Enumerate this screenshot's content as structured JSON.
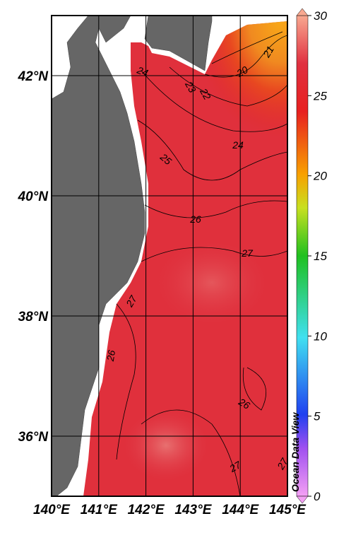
{
  "map": {
    "xlim": [
      140,
      145
    ],
    "ylim": [
      35,
      43
    ],
    "xticks": [
      {
        "value": 140,
        "label": "140°E"
      },
      {
        "value": 141,
        "label": "141°E"
      },
      {
        "value": 142,
        "label": "142°E"
      },
      {
        "value": 143,
        "label": "143°E"
      },
      {
        "value": 144,
        "label": "144°E"
      },
      {
        "value": 145,
        "label": "145°E"
      }
    ],
    "yticks": [
      {
        "value": 36,
        "label": "36°N"
      },
      {
        "value": 38,
        "label": "38°N"
      },
      {
        "value": 40,
        "label": "40°N"
      },
      {
        "value": 42,
        "label": "42°N"
      }
    ],
    "contour_labels": [
      "21",
      "20",
      "22",
      "23",
      "24",
      "24",
      "25",
      "26",
      "27",
      "27",
      "26",
      "26",
      "27",
      "27"
    ]
  },
  "colorbar": {
    "lim": [
      0,
      30
    ],
    "ticks": [
      0,
      5,
      10,
      15,
      20,
      25,
      30
    ]
  },
  "watermark": "Ocean Data View"
}
